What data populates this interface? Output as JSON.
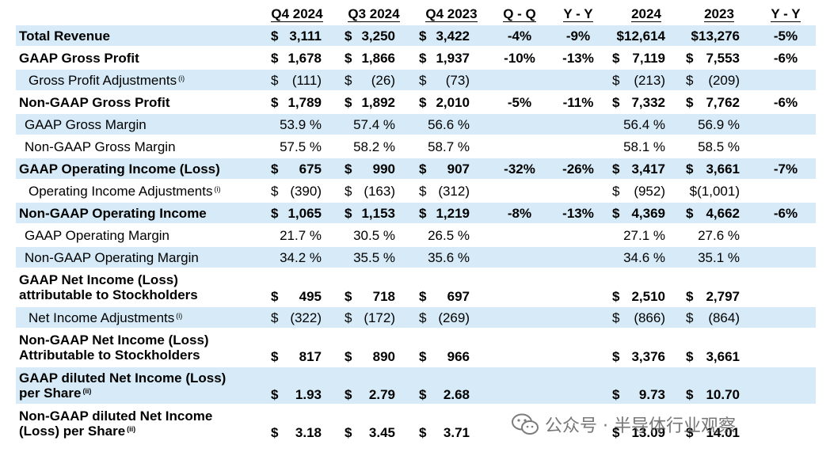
{
  "headers": [
    "Q4 2024",
    "Q3 2024",
    "Q4 2023",
    "Q - Q",
    "Y - Y",
    "2024",
    "2023",
    "Y - Y"
  ],
  "rows": [
    {
      "label": "Total Revenue",
      "bold": true,
      "shaded": true,
      "vals": [
        "$",
        "3,111",
        "$",
        "3,250",
        "$",
        "3,422",
        "-4%",
        "-9%",
        "",
        "$12,614",
        "",
        "$13,276",
        "-5%"
      ]
    },
    {
      "label": "GAAP Gross Profit",
      "bold": true,
      "shaded": false,
      "vals": [
        "$",
        "1,678",
        "$",
        "1,866",
        "$",
        "1,937",
        "-10%",
        "-13%",
        "$",
        "7,119",
        "$",
        "7,553",
        "-6%"
      ]
    },
    {
      "label": "Gross Profit Adjustments",
      "sup": "(i)",
      "bold": false,
      "shaded": true,
      "vals": [
        "$",
        "(111)",
        "$",
        "(26)",
        "$",
        "(73)",
        "",
        "",
        "$",
        "(213)",
        "$",
        "(209)",
        ""
      ]
    },
    {
      "label": "Non-GAAP Gross Profit",
      "bold": true,
      "shaded": false,
      "vals": [
        "$",
        "1,789",
        "$",
        "1,892",
        "$",
        "2,010",
        "-5%",
        "-11%",
        "$",
        "7,332",
        "$",
        "7,762",
        "-6%"
      ]
    },
    {
      "label": "GAAP Gross Margin",
      "bold": false,
      "shaded": true,
      "vals": [
        "",
        "53.9 %",
        "",
        "57.4 %",
        "",
        "56.6 %",
        "",
        "",
        "",
        "56.4 %",
        "",
        "56.9 %",
        ""
      ]
    },
    {
      "label": "Non-GAAP Gross Margin",
      "bold": false,
      "shaded": false,
      "vals": [
        "",
        "57.5 %",
        "",
        "58.2 %",
        "",
        "58.7 %",
        "",
        "",
        "",
        "58.1 %",
        "",
        "58.5 %",
        ""
      ]
    },
    {
      "label": "GAAP Operating Income  (Loss)",
      "bold": true,
      "shaded": true,
      "vals": [
        "$",
        "675",
        "$",
        "990",
        "$",
        "907",
        "-32%",
        "-26%",
        "$",
        "3,417",
        "$",
        "3,661",
        "-7%"
      ]
    },
    {
      "label": "Operating Income Adjustments",
      "sup": "(i)",
      "bold": false,
      "shaded": false,
      "vals": [
        "$",
        "(390)",
        "$",
        "(163)",
        "$",
        "(312)",
        "",
        "",
        "$",
        "(952)",
        "",
        "$(1,001)",
        ""
      ]
    },
    {
      "label": "Non-GAAP Operating Income",
      "bold": true,
      "shaded": true,
      "vals": [
        "$",
        "1,065",
        "$",
        "1,153",
        "$",
        "1,219",
        "-8%",
        "-13%",
        "$",
        "4,369",
        "$",
        "4,662",
        "-6%"
      ]
    },
    {
      "label": "GAAP Operating Margin",
      "bold": false,
      "shaded": false,
      "vals": [
        "",
        "21.7 %",
        "",
        "30.5 %",
        "",
        "26.5 %",
        "",
        "",
        "",
        "27.1 %",
        "",
        "27.6 %",
        ""
      ]
    },
    {
      "label": "Non-GAAP Operating Margin",
      "bold": false,
      "shaded": true,
      "vals": [
        "",
        "34.2 %",
        "",
        "35.5 %",
        "",
        "35.6 %",
        "",
        "",
        "",
        "34.6 %",
        "",
        "35.1 %",
        ""
      ]
    },
    {
      "label": "GAAP Net Income (Loss)",
      "label2": "attributable to Stockholders",
      "bold": true,
      "shaded": false,
      "vals": [
        "$",
        "495",
        "$",
        "718",
        "$",
        "697",
        "",
        "",
        "$",
        "2,510",
        "$",
        "2,797",
        ""
      ]
    },
    {
      "label": "Net Income Adjustments",
      "sup": "(i)",
      "bold": false,
      "shaded": true,
      "vals": [
        "$",
        "(322)",
        "$",
        "(172)",
        "$",
        "(269)",
        "",
        "",
        "$",
        "(866)",
        "$",
        "(864)",
        ""
      ]
    },
    {
      "label": "Non-GAAP Net Income (Loss)",
      "label2": "Attributable to Stockholders",
      "bold": true,
      "shaded": false,
      "vals": [
        "$",
        "817",
        "$",
        "890",
        "$",
        "966",
        "",
        "",
        "$",
        "3,376",
        "$",
        "3,661",
        ""
      ]
    },
    {
      "label": "GAAP diluted Net Income (Loss)",
      "label2": "per Share",
      "sup2": "(ii)",
      "bold": true,
      "shaded": true,
      "vals": [
        "$",
        "1.93",
        "$",
        "2.79",
        "$",
        "2.68",
        "",
        "",
        "$",
        "9.73",
        "$",
        "10.70",
        ""
      ]
    },
    {
      "label": "Non-GAAP diluted Net Income",
      "label2": "(Loss) per Share",
      "sup2": "(ii)",
      "bold": true,
      "shaded": false,
      "vals": [
        "$",
        "3.18",
        "$",
        "3.45",
        "$",
        "3.71",
        "",
        "",
        "$",
        "13.09",
        "$",
        "14.01",
        ""
      ]
    }
  ],
  "watermark": {
    "text": "公众号 · 半导体行业观察",
    "icon": "wechat-icon"
  }
}
